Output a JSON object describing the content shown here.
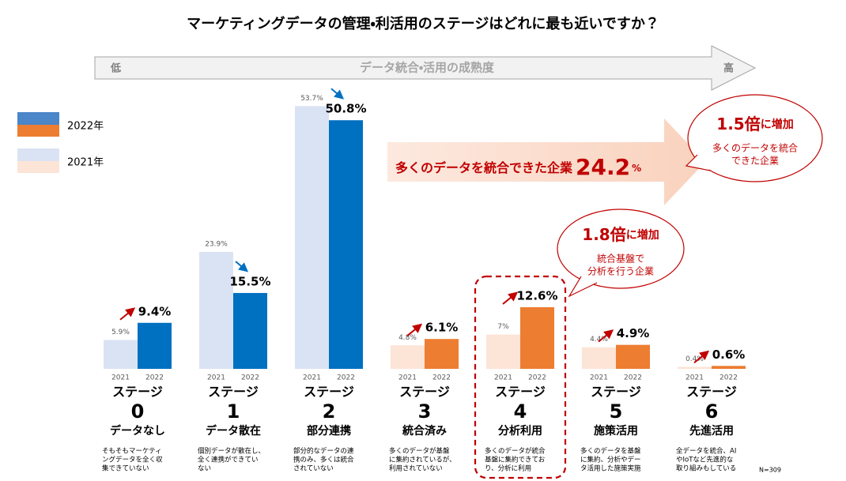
{
  "chart_data": {
    "type": "bar",
    "title": "マーケティングデータの管理・利活用のステージはどれに最も近いですか？",
    "maturity_arrow": {
      "low": "低",
      "label": "データ統合・活用の成熟度",
      "high": "高"
    },
    "categories": [
      "データなし",
      "データ散在",
      "部分連携",
      "統合済み",
      "分析利用",
      "施策活用",
      "先進活用"
    ],
    "stage_prefix": "ステージ",
    "stage_numbers": [
      "0",
      "1",
      "2",
      "3",
      "4",
      "5",
      "6"
    ],
    "descriptions": [
      [
        "そもそもマーケティ",
        "ングデータを全く収",
        "集できていない"
      ],
      [
        "個別データが散在し、",
        "全く連携ができてい",
        "ない"
      ],
      [
        "部分的なデータの連",
        "携のみ、多くは統合",
        "されていない"
      ],
      [
        "多くのデータが基盤",
        "に集約されているが、",
        "利用されていない"
      ],
      [
        "多くのデータが統合",
        "基盤に集約できてお",
        "り、分析に利用"
      ],
      [
        "多くのデータを基盤",
        "に集約、分析やデー",
        "タ活用した施策実施"
      ],
      [
        "全データを統合、AI",
        "やIoTなど先進的な",
        "取り組みもしている"
      ]
    ],
    "bar_labels": [
      "2021",
      "2022"
    ],
    "series": [
      {
        "name": "2022年",
        "colors": [
          "#0070c0",
          "#0070c0",
          "#0070c0",
          "#ed7d31",
          "#ed7d31",
          "#ed7d31",
          "#ed7d31"
        ],
        "values": [
          9.4,
          15.5,
          50.8,
          6.1,
          12.6,
          4.9,
          0.6
        ],
        "value_labels": [
          "9.4%",
          "15.5%",
          "50.8%",
          "6.1%",
          "12.6%",
          "4.9%",
          "0.6%"
        ]
      },
      {
        "name": "2021年",
        "colors": [
          "#dae3f3",
          "#dae3f3",
          "#dae3f3",
          "#fce4d6",
          "#fce4d6",
          "#fce4d6",
          "#fce4d6"
        ],
        "values": [
          5.9,
          23.9,
          53.7,
          4.8,
          7,
          4.4,
          0.4
        ],
        "value_labels": [
          "5.9%",
          "23.9%",
          "53.7%",
          "4.8%",
          "7%",
          "4.4%",
          "0.4%"
        ]
      }
    ],
    "ylim": [
      0,
      56
    ],
    "banner": {
      "text": "多くのデータを統合できた企業",
      "number": "24.2",
      "unit": "%"
    },
    "callouts": [
      {
        "ratio": "1.5倍",
        "suffix": "に増加",
        "lines": [
          "多くのデータを統合",
          "できた企業"
        ]
      },
      {
        "ratio": "1.8倍",
        "suffix": "に増加",
        "lines": [
          "統合基盤で",
          "分析を行う企業"
        ]
      }
    ],
    "note": "N=309"
  }
}
